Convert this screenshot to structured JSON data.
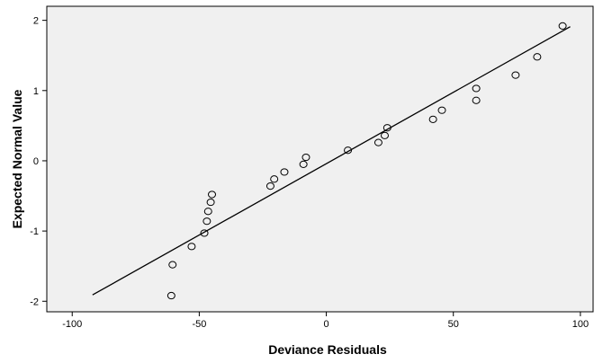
{
  "chart_data": {
    "type": "scatter",
    "title": "",
    "xlabel": "Deviance Residuals",
    "ylabel": "Expected Normal Value",
    "xlim": [
      -110,
      105
    ],
    "ylim": [
      -2.15,
      2.2
    ],
    "xticks": [
      -100,
      -50,
      0,
      50,
      100
    ],
    "yticks": [
      -2,
      -1,
      0,
      1,
      2
    ],
    "xtick_labels": [
      "-100",
      "-50",
      "0",
      "50",
      "100"
    ],
    "ytick_labels": [
      "-2",
      "-1",
      "0",
      "1",
      "2"
    ],
    "grid": false,
    "plot_background": "#f0f0f0",
    "marker": "open-circle",
    "points": [
      {
        "x": -61,
        "y": -1.92
      },
      {
        "x": -60.5,
        "y": -1.48
      },
      {
        "x": -53,
        "y": -1.22
      },
      {
        "x": -48,
        "y": -1.03
      },
      {
        "x": -47,
        "y": -0.86
      },
      {
        "x": -46.5,
        "y": -0.72
      },
      {
        "x": -45.5,
        "y": -0.59
      },
      {
        "x": -45,
        "y": -0.48
      },
      {
        "x": -22,
        "y": -0.36
      },
      {
        "x": -20.5,
        "y": -0.26
      },
      {
        "x": -16.5,
        "y": -0.16
      },
      {
        "x": -9,
        "y": -0.05
      },
      {
        "x": -8,
        "y": 0.05
      },
      {
        "x": 8.5,
        "y": 0.15
      },
      {
        "x": 20.5,
        "y": 0.26
      },
      {
        "x": 23,
        "y": 0.36
      },
      {
        "x": 24,
        "y": 0.47
      },
      {
        "x": 42,
        "y": 0.59
      },
      {
        "x": 45.5,
        "y": 0.72
      },
      {
        "x": 59,
        "y": 0.86
      },
      {
        "x": 59,
        "y": 1.03
      },
      {
        "x": 74.5,
        "y": 1.22
      },
      {
        "x": 83,
        "y": 1.48
      },
      {
        "x": 93,
        "y": 1.92
      }
    ],
    "reference_line": {
      "x": [
        -92,
        96
      ],
      "y": [
        -1.91,
        1.91
      ]
    }
  }
}
